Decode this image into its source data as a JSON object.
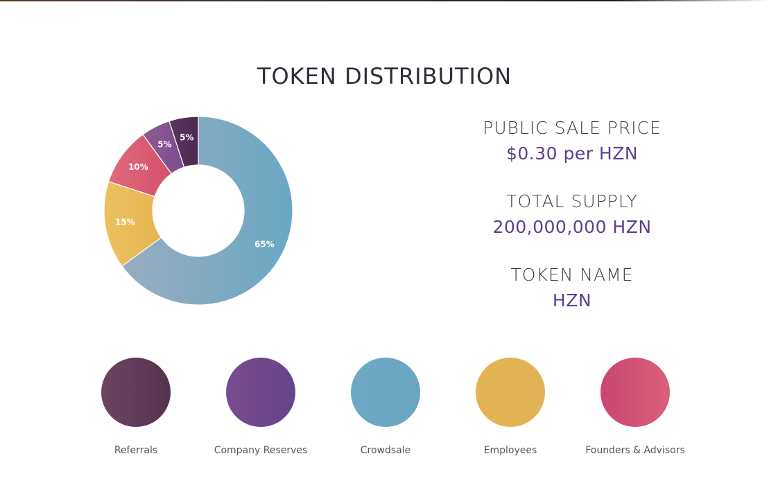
{
  "title": "TOKEN DISTRIBUTION",
  "chart_data": {
    "type": "pie",
    "title": "TOKEN DISTRIBUTION",
    "donut": true,
    "slices": [
      {
        "label": "65%",
        "value": 65,
        "color_a": "#6aa7c4",
        "color_b": "#97adc0"
      },
      {
        "label": "15%",
        "value": 15,
        "color_a": "#e7b54f",
        "color_b": "#ebc160"
      },
      {
        "label": "10%",
        "value": 10,
        "color_a": "#d6506d",
        "color_b": "#de6a7b"
      },
      {
        "label": "5%",
        "value": 5,
        "color_a": "#7b4c8e",
        "color_b": "#8e5b92"
      },
      {
        "label": "5%",
        "value": 5,
        "color_a": "#4b2b4f",
        "color_b": "#5d3560"
      }
    ]
  },
  "info": {
    "public_sale_label": "PUBLIC SALE PRICE",
    "public_sale_value": "$0.30 per HZN",
    "total_supply_label": "TOTAL SUPPLY",
    "total_supply_value": "200,000,000 HZN",
    "token_name_label": "TOKEN NAME",
    "token_name_value": "HZN"
  },
  "legend": [
    {
      "label": "Referrals",
      "color_a": "#6e4461",
      "color_b": "#53334e"
    },
    {
      "label": "Company Reserves",
      "color_a": "#7a4b8e",
      "color_b": "#634689"
    },
    {
      "label": "Crowdsale",
      "color_a": "#6ea8c4",
      "color_b": "#6aa5c2"
    },
    {
      "label": "Employees",
      "color_a": "#e3b452",
      "color_b": "#e2b355"
    },
    {
      "label": "Founders & Advisors",
      "color_a": "#ca4670",
      "color_b": "#d9607b"
    }
  ]
}
